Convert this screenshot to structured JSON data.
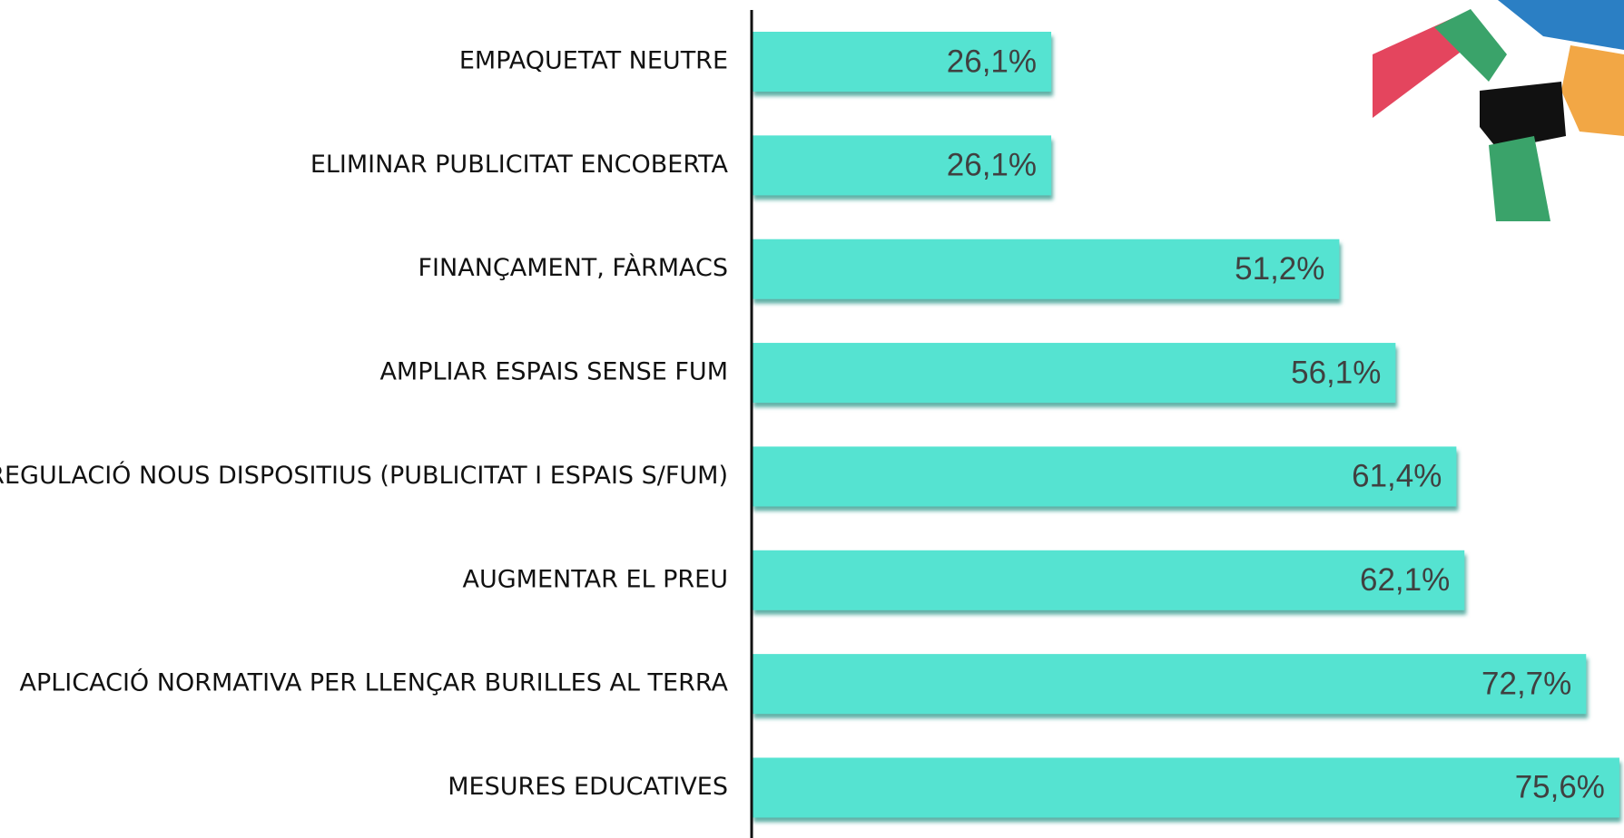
{
  "chart_data": {
    "type": "bar",
    "orientation": "horizontal",
    "categories": [
      "EMPAQUETAT NEUTRE",
      "ELIMINAR PUBLICITAT ENCOBERTA",
      "FINANÇAMENT, FÀRMACS",
      "AMPLIAR ESPAIS SENSE FUM",
      "REGULACIÓ NOUS DISPOSITIUS (PUBLICITAT I ESPAIS S/FUM)",
      "AUGMENTAR EL PREU",
      "APLICACIÓ NORMATIVA PER LLENÇAR BURILLES AL TERRA",
      "MESURES EDUCATIVES"
    ],
    "values": [
      26.1,
      26.1,
      51.2,
      56.1,
      61.4,
      62.1,
      72.7,
      75.6
    ],
    "value_labels": [
      "26,1%",
      "26,1%",
      "51,2%",
      "56,1%",
      "61,4%",
      "62,1%",
      "72,7%",
      "75,6%"
    ],
    "color": "#55e3d1",
    "xlim": [
      0,
      76
    ]
  }
}
